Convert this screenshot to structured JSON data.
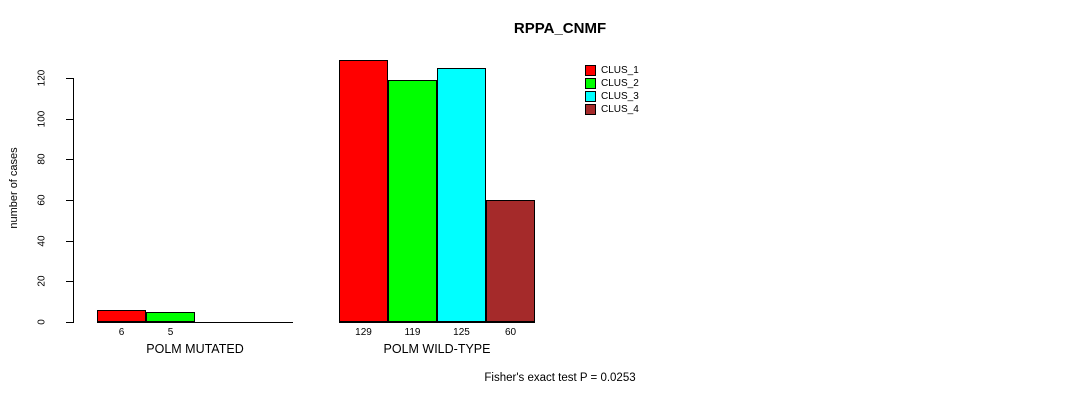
{
  "chart_data": {
    "type": "bar",
    "title": "RPPA_CNMF",
    "ylabel": "number of cases",
    "xlabel": "",
    "yticks": [
      0,
      20,
      40,
      60,
      80,
      100,
      120
    ],
    "ylim": [
      0,
      130
    ],
    "grid": false,
    "legend_position": "top-right",
    "categories": [
      "POLM MUTATED",
      "POLM WILD-TYPE"
    ],
    "series": [
      {
        "name": "CLUS_1",
        "color": "#FF0000",
        "values": [
          6,
          129
        ]
      },
      {
        "name": "CLUS_2",
        "color": "#00FF00",
        "values": [
          5,
          119
        ]
      },
      {
        "name": "CLUS_3",
        "color": "#00FFFF",
        "values": [
          0,
          125
        ]
      },
      {
        "name": "CLUS_4",
        "color": "#A52A2A",
        "values": [
          0,
          60
        ]
      }
    ],
    "bar_value_labels": {
      "POLM MUTATED": [
        "6",
        "5"
      ],
      "POLM WILD-TYPE": [
        "129",
        "119",
        "125",
        "60"
      ]
    },
    "annotation": "Fisher's exact test P = 0.0253"
  }
}
